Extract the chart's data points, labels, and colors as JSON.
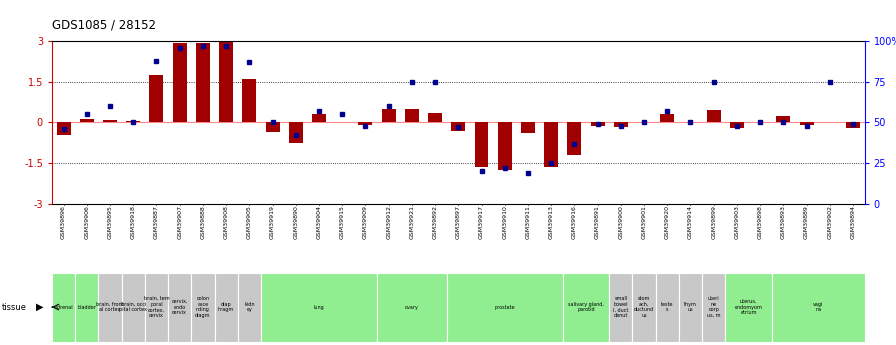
{
  "title": "GDS1085 / 28152",
  "samples": [
    "GSM39896",
    "GSM39906",
    "GSM39895",
    "GSM39918",
    "GSM39887",
    "GSM39907",
    "GSM39888",
    "GSM39908",
    "GSM39905",
    "GSM39919",
    "GSM39890",
    "GSM39904",
    "GSM39915",
    "GSM39909",
    "GSM39912",
    "GSM39921",
    "GSM39892",
    "GSM39897",
    "GSM39917",
    "GSM39910",
    "GSM39911",
    "GSM39913",
    "GSM39916",
    "GSM39891",
    "GSM39900",
    "GSM39901",
    "GSM39920",
    "GSM39914",
    "GSM39899",
    "GSM39903",
    "GSM39898",
    "GSM39893",
    "GSM39889",
    "GSM39902",
    "GSM39894"
  ],
  "log_ratio": [
    -0.45,
    0.12,
    0.08,
    0.07,
    1.75,
    2.95,
    2.95,
    3.0,
    1.6,
    -0.35,
    -0.75,
    0.3,
    0.0,
    -0.08,
    0.5,
    0.5,
    0.35,
    -0.3,
    -1.65,
    -1.75,
    -0.4,
    -1.65,
    -1.2,
    -0.12,
    -0.18,
    0.0,
    0.3,
    0.0,
    0.45,
    -0.2,
    0.0,
    0.25,
    -0.08,
    0.0,
    -0.22
  ],
  "percentile": [
    46,
    55,
    60,
    50,
    88,
    96,
    97,
    97,
    87,
    50,
    42,
    57,
    55,
    48,
    60,
    75,
    75,
    47,
    20,
    22,
    19,
    25,
    37,
    49,
    48,
    50,
    57,
    50,
    75,
    48,
    50,
    50,
    48,
    75,
    49
  ],
  "tissue_groups": [
    {
      "label": "adrenal",
      "start": 0,
      "end": 1,
      "color": "#90EE90"
    },
    {
      "label": "bladder",
      "start": 1,
      "end": 2,
      "color": "#90EE90"
    },
    {
      "label": "brain, front\nal cortex",
      "start": 2,
      "end": 3,
      "color": "#c8c8c8"
    },
    {
      "label": "brain, occi\npital cortex",
      "start": 3,
      "end": 4,
      "color": "#c8c8c8"
    },
    {
      "label": "brain, tem\nporal\ncortex,\ncervix",
      "start": 4,
      "end": 5,
      "color": "#c8c8c8"
    },
    {
      "label": "cervix,\nendo\ncervix",
      "start": 5,
      "end": 6,
      "color": "#c8c8c8"
    },
    {
      "label": "colon\nasce\nnding\ndiagm",
      "start": 6,
      "end": 7,
      "color": "#c8c8c8"
    },
    {
      "label": "diap\nhragm",
      "start": 7,
      "end": 8,
      "color": "#c8c8c8"
    },
    {
      "label": "kidn\ney",
      "start": 8,
      "end": 9,
      "color": "#c8c8c8"
    },
    {
      "label": "lung",
      "start": 9,
      "end": 14,
      "color": "#90EE90"
    },
    {
      "label": "ovary",
      "start": 14,
      "end": 17,
      "color": "#90EE90"
    },
    {
      "label": "prostate",
      "start": 17,
      "end": 22,
      "color": "#90EE90"
    },
    {
      "label": "salivary gland,\nparotid",
      "start": 22,
      "end": 24,
      "color": "#90EE90"
    },
    {
      "label": "small\nbowel\nI, duct\ndenut",
      "start": 24,
      "end": 25,
      "color": "#c8c8c8"
    },
    {
      "label": "stom\nach,\nductund\nus",
      "start": 25,
      "end": 26,
      "color": "#c8c8c8"
    },
    {
      "label": "teste\ns",
      "start": 26,
      "end": 27,
      "color": "#c8c8c8"
    },
    {
      "label": "thym\nus",
      "start": 27,
      "end": 28,
      "color": "#c8c8c8"
    },
    {
      "label": "uteri\nne\ncorp\nus, m",
      "start": 28,
      "end": 29,
      "color": "#c8c8c8"
    },
    {
      "label": "uterus,\nendomyom\netrium",
      "start": 29,
      "end": 31,
      "color": "#90EE90"
    },
    {
      "label": "vagi\nna",
      "start": 31,
      "end": 35,
      "color": "#90EE90"
    }
  ],
  "ylim": [
    -3,
    3
  ],
  "yticks_left": [
    -3,
    -1.5,
    0,
    1.5,
    3
  ],
  "bar_color": "#A00000",
  "dot_color": "#000090",
  "hline_color": "#FF8888",
  "dotline_color": "black",
  "bg_color": "white",
  "xticklabel_bg": "#c8c8c8"
}
